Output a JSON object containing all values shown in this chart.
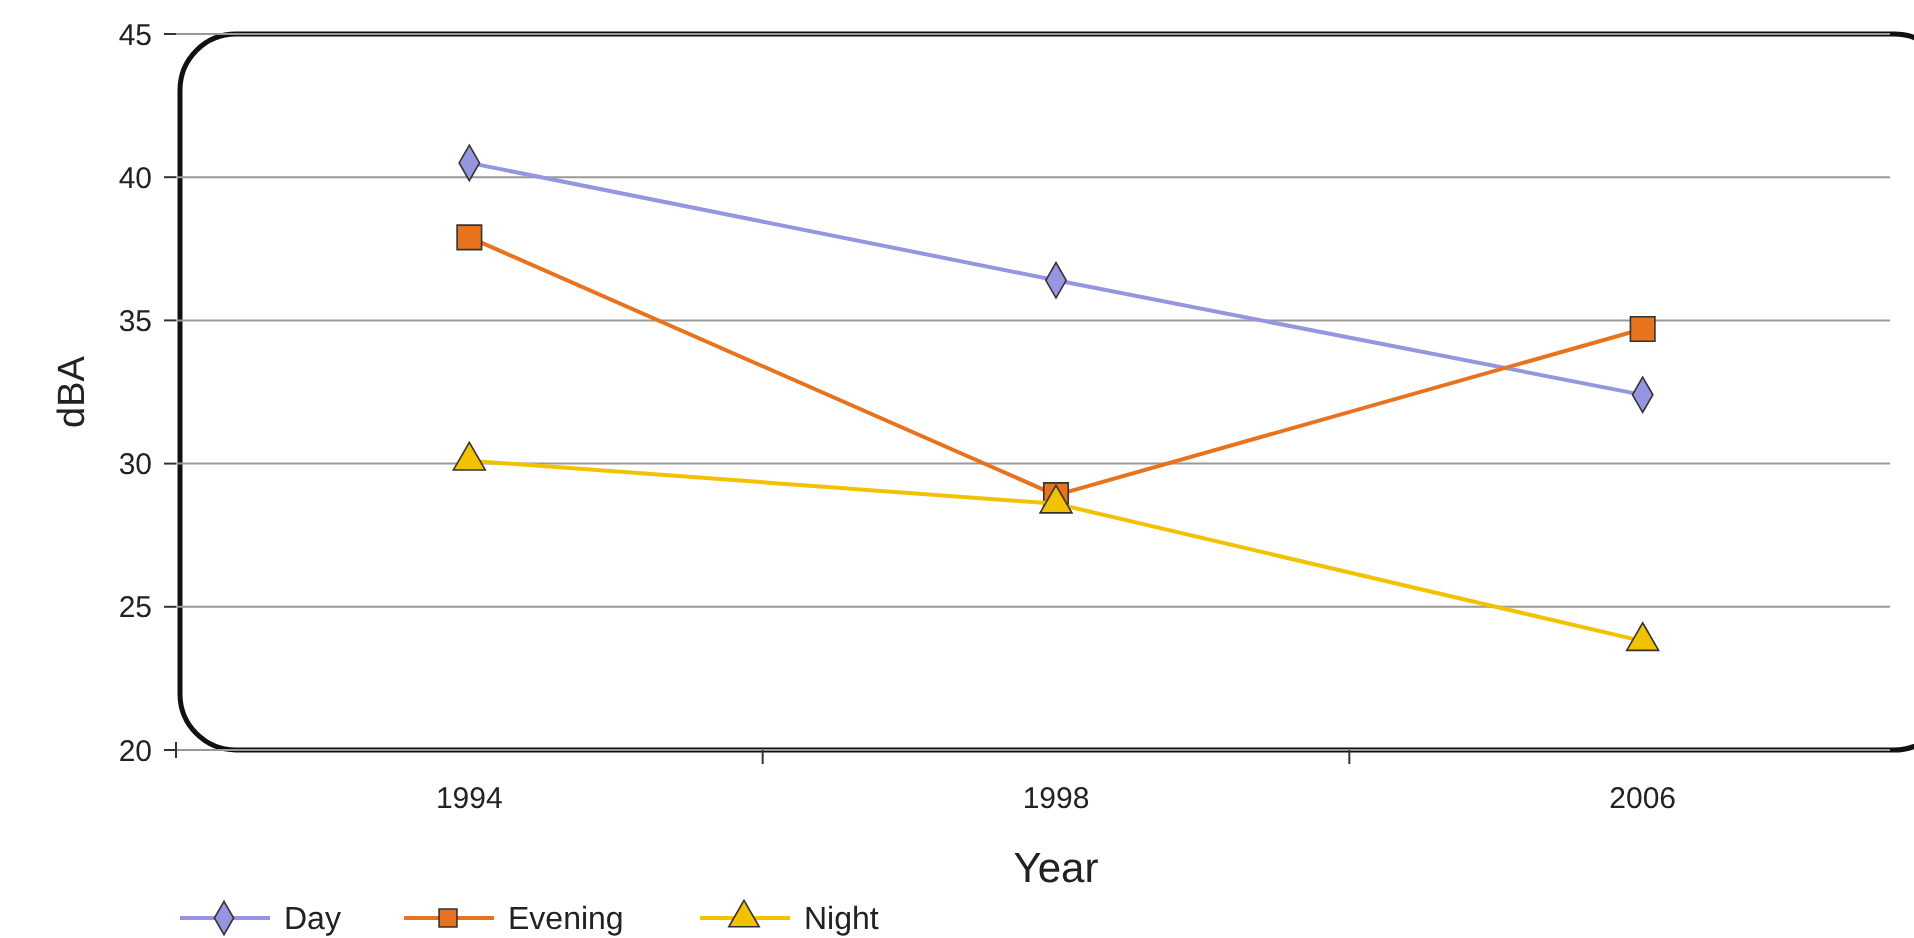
{
  "chart_data": {
    "type": "line",
    "xlabel": "Year",
    "ylabel": "dBA",
    "categories": [
      "1994",
      "1998",
      "2006"
    ],
    "ylim": [
      20,
      45
    ],
    "yticks": [
      20,
      25,
      30,
      35,
      40,
      45
    ],
    "grid": "y",
    "legend": "bottom left",
    "series": [
      {
        "name": "Day",
        "color": "#9595e0",
        "marker": "diamond",
        "values": [
          40.5,
          36.4,
          32.4
        ]
      },
      {
        "name": "Evening",
        "color": "#e8731e",
        "marker": "square",
        "values": [
          37.9,
          28.9,
          34.7
        ]
      },
      {
        "name": "Night",
        "color": "#f2c200",
        "marker": "triangle",
        "values": [
          30.1,
          28.6,
          23.8
        ]
      }
    ]
  }
}
